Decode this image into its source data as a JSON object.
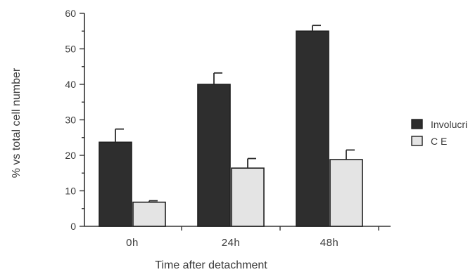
{
  "chart_data": {
    "type": "bar",
    "categories": [
      "0h",
      "24h",
      "48h"
    ],
    "series": [
      {
        "name": "Involucrin",
        "values": [
          23.7,
          40,
          55
        ],
        "errors": [
          3.7,
          3.2,
          1.6
        ],
        "color": "#2e2e2e"
      },
      {
        "name": "C E",
        "values": [
          6.8,
          16.4,
          18.8
        ],
        "errors": [
          0.4,
          2.7,
          2.7
        ],
        "color": "#e4e4e4"
      }
    ],
    "xlabel": "Time after detachment",
    "ylabel": "% vs total cell number",
    "ylim": [
      0,
      60
    ],
    "yticks": [
      0,
      10,
      20,
      30,
      40,
      50,
      60
    ],
    "legend_position": "right",
    "grid": false
  }
}
